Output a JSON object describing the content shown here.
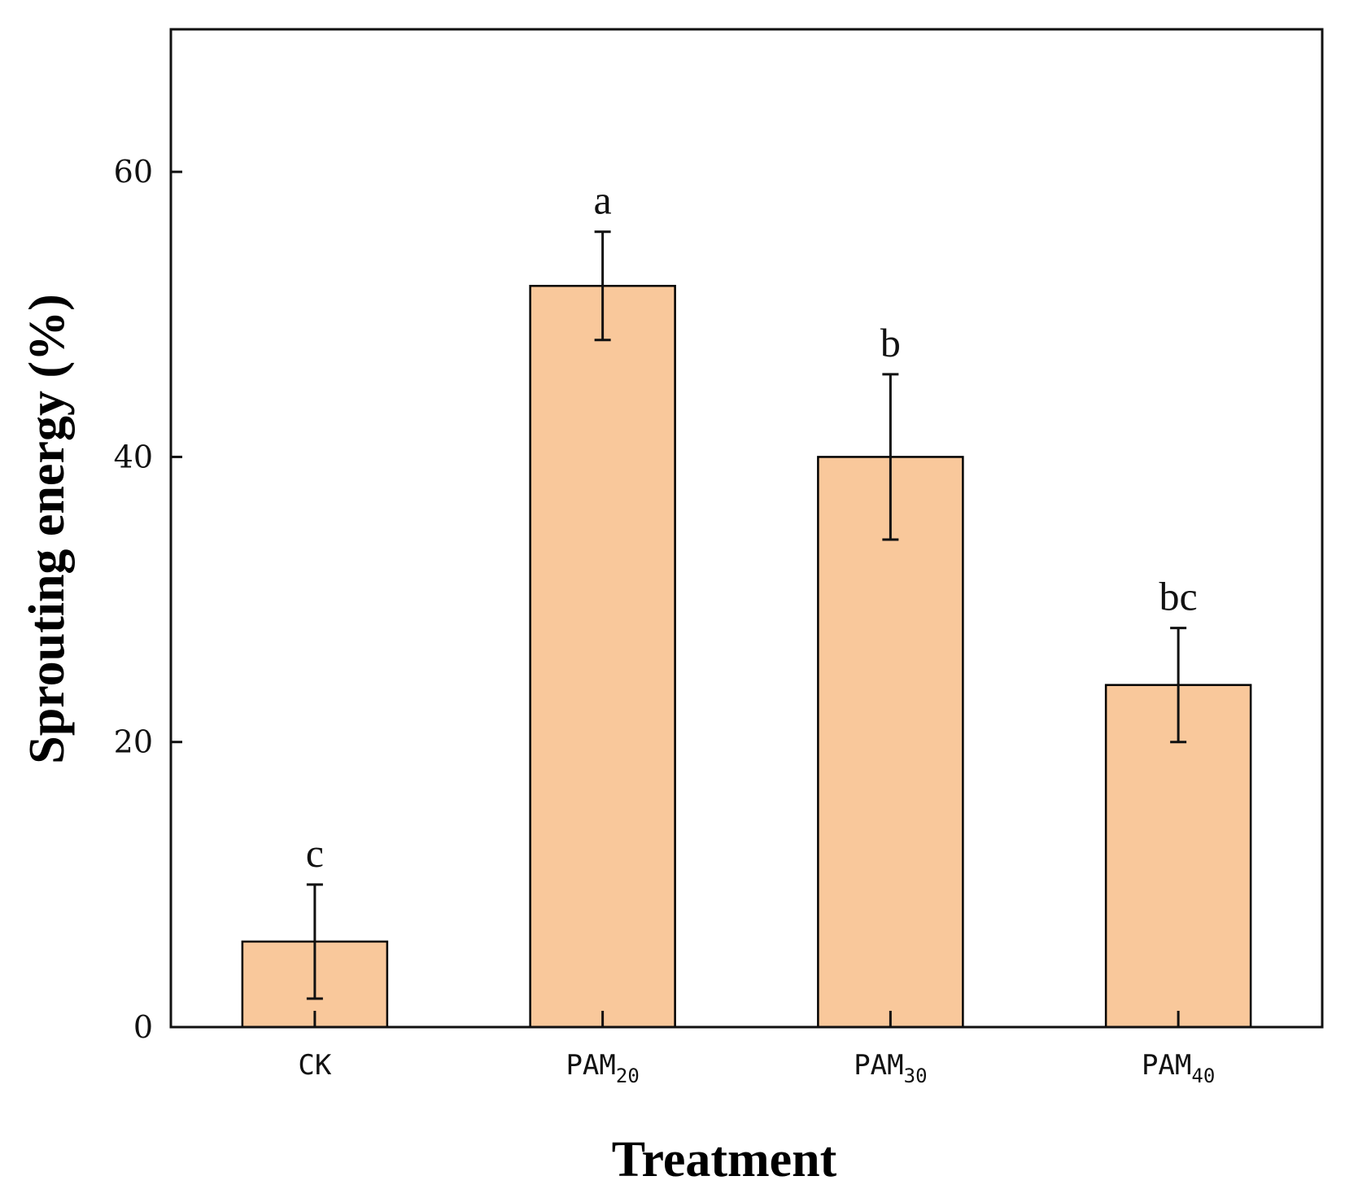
{
  "chart_data": {
    "type": "bar",
    "title": "",
    "xlabel": "Treatment",
    "ylabel": "Sprouting energy (%)",
    "ylim": [
      0,
      70
    ],
    "yticks": [
      0,
      20,
      40,
      60
    ],
    "grid": false,
    "legend": "none",
    "bar_color": "#f9c89b",
    "edge_color": "#000000",
    "categories": [
      {
        "label": "CK",
        "sub": ""
      },
      {
        "label": "PAM",
        "sub": "20"
      },
      {
        "label": "PAM",
        "sub": "30"
      },
      {
        "label": "PAM",
        "sub": "40"
      }
    ],
    "values": [
      6,
      52,
      40,
      24
    ],
    "errors": [
      4,
      3.8,
      5.8,
      4
    ],
    "significance": [
      "c",
      "a",
      "b",
      "bc"
    ]
  }
}
